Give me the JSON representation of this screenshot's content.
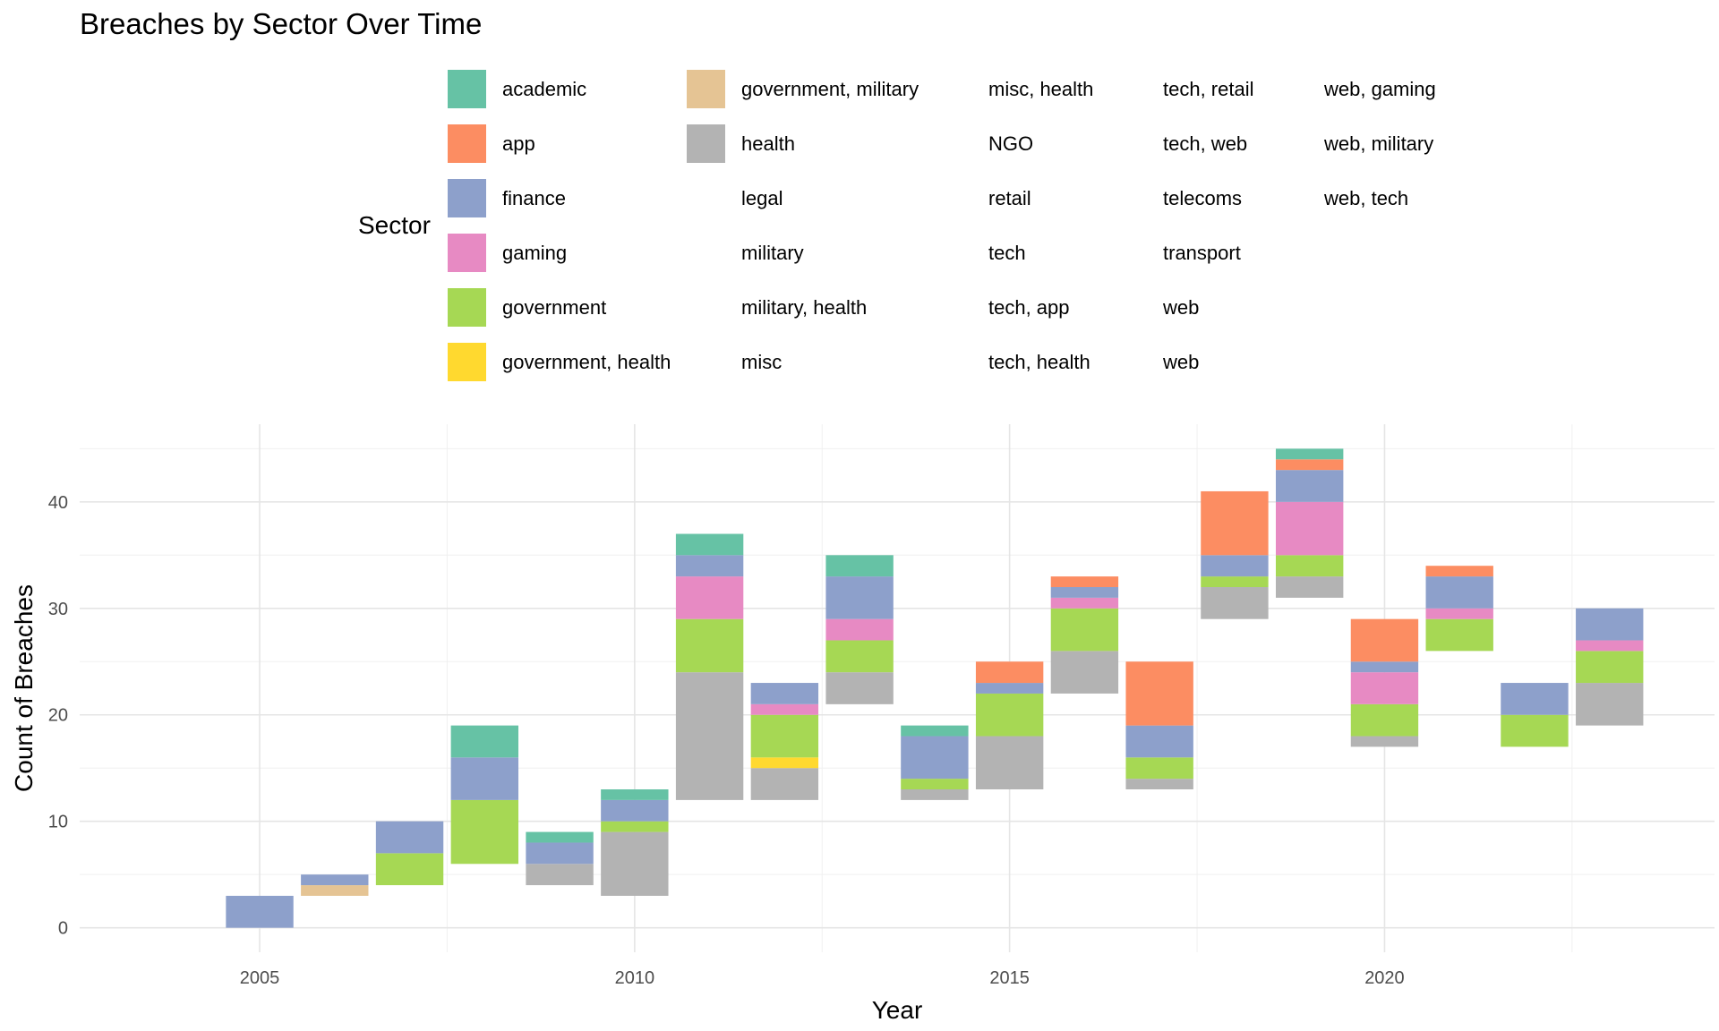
{
  "chart_data": {
    "type": "bar",
    "title": "Breaches by Sector Over Time",
    "xlabel": "Year",
    "ylabel": "Count of Breaches",
    "xlim": [
      2002.6,
      2024.4
    ],
    "ylim": [
      -2.3,
      47.3
    ],
    "x_ticks": [
      2005,
      2010,
      2015,
      2020
    ],
    "y_ticks": [
      0,
      10,
      20,
      30,
      40
    ],
    "grid": true,
    "bar_width": 0.9,
    "legend": {
      "title": "Sector",
      "placement": "top",
      "columns": [
        [
          "academic",
          "app",
          "finance",
          "gaming",
          "government",
          "government, health"
        ],
        [
          "government, military",
          "health",
          "legal",
          "military",
          "military, health",
          "misc"
        ],
        [
          "misc, health",
          "NGO",
          "retail",
          "tech",
          "tech, app",
          "tech, health"
        ],
        [
          "tech, retail",
          "tech, web",
          "telecoms",
          "transport",
          "web",
          "web"
        ],
        [
          "web, gaming",
          "web, military",
          "web, tech"
        ]
      ]
    },
    "colors": {
      "academic": "#66C2A5",
      "app": "#FC8D62",
      "finance": "#8DA0CB",
      "gaming": "#E78AC3",
      "government": "#A6D854",
      "government, health": "#FFD92F",
      "government, military": "#E5C494",
      "health": "#B3B3B3"
    },
    "stacks": [
      {
        "year": 2005,
        "base": 0,
        "segments": [
          {
            "sector": "finance",
            "value": 3
          }
        ]
      },
      {
        "year": 2006,
        "base": 3,
        "segments": [
          {
            "sector": "government, military",
            "value": 1
          },
          {
            "sector": "finance",
            "value": 1
          }
        ]
      },
      {
        "year": 2007,
        "base": 4,
        "segments": [
          {
            "sector": "government",
            "value": 3
          },
          {
            "sector": "finance",
            "value": 3
          }
        ]
      },
      {
        "year": 2008,
        "base": 6,
        "segments": [
          {
            "sector": "government",
            "value": 6
          },
          {
            "sector": "finance",
            "value": 4
          },
          {
            "sector": "academic",
            "value": 3
          }
        ]
      },
      {
        "year": 2009,
        "base": 4,
        "segments": [
          {
            "sector": "health",
            "value": 2
          },
          {
            "sector": "finance",
            "value": 2
          },
          {
            "sector": "academic",
            "value": 1
          }
        ]
      },
      {
        "year": 2010,
        "base": 3,
        "segments": [
          {
            "sector": "health",
            "value": 6
          },
          {
            "sector": "government",
            "value": 1
          },
          {
            "sector": "finance",
            "value": 2
          },
          {
            "sector": "academic",
            "value": 1
          }
        ]
      },
      {
        "year": 2011,
        "base": 12,
        "segments": [
          {
            "sector": "health",
            "value": 12
          },
          {
            "sector": "government",
            "value": 5
          },
          {
            "sector": "gaming",
            "value": 4
          },
          {
            "sector": "finance",
            "value": 2
          },
          {
            "sector": "academic",
            "value": 2
          }
        ]
      },
      {
        "year": 2012,
        "base": 12,
        "segments": [
          {
            "sector": "health",
            "value": 3
          },
          {
            "sector": "government, health",
            "value": 1
          },
          {
            "sector": "government",
            "value": 4
          },
          {
            "sector": "gaming",
            "value": 1
          },
          {
            "sector": "finance",
            "value": 2
          }
        ]
      },
      {
        "year": 2013,
        "base": 21,
        "segments": [
          {
            "sector": "health",
            "value": 3
          },
          {
            "sector": "government",
            "value": 3
          },
          {
            "sector": "gaming",
            "value": 2
          },
          {
            "sector": "finance",
            "value": 4
          },
          {
            "sector": "academic",
            "value": 2
          }
        ]
      },
      {
        "year": 2014,
        "base": 12,
        "segments": [
          {
            "sector": "health",
            "value": 1
          },
          {
            "sector": "government",
            "value": 1
          },
          {
            "sector": "finance",
            "value": 4
          },
          {
            "sector": "academic",
            "value": 1
          }
        ]
      },
      {
        "year": 2015,
        "base": 13,
        "segments": [
          {
            "sector": "health",
            "value": 5
          },
          {
            "sector": "government",
            "value": 4
          },
          {
            "sector": "finance",
            "value": 1
          },
          {
            "sector": "app",
            "value": 2
          }
        ]
      },
      {
        "year": 2016,
        "base": 22,
        "segments": [
          {
            "sector": "health",
            "value": 4
          },
          {
            "sector": "government",
            "value": 4
          },
          {
            "sector": "gaming",
            "value": 1
          },
          {
            "sector": "finance",
            "value": 1
          },
          {
            "sector": "app",
            "value": 1
          }
        ]
      },
      {
        "year": 2017,
        "base": 13,
        "segments": [
          {
            "sector": "health",
            "value": 1
          },
          {
            "sector": "government",
            "value": 2
          },
          {
            "sector": "finance",
            "value": 3
          },
          {
            "sector": "app",
            "value": 6
          }
        ]
      },
      {
        "year": 2018,
        "base": 29,
        "segments": [
          {
            "sector": "health",
            "value": 3
          },
          {
            "sector": "government",
            "value": 1
          },
          {
            "sector": "finance",
            "value": 2
          },
          {
            "sector": "app",
            "value": 6
          }
        ]
      },
      {
        "year": 2019,
        "base": 31,
        "segments": [
          {
            "sector": "health",
            "value": 2
          },
          {
            "sector": "government",
            "value": 2
          },
          {
            "sector": "gaming",
            "value": 5
          },
          {
            "sector": "finance",
            "value": 3
          },
          {
            "sector": "app",
            "value": 1
          },
          {
            "sector": "academic",
            "value": 1
          }
        ]
      },
      {
        "year": 2020,
        "base": 17,
        "segments": [
          {
            "sector": "health",
            "value": 1
          },
          {
            "sector": "government",
            "value": 3
          },
          {
            "sector": "gaming",
            "value": 3
          },
          {
            "sector": "finance",
            "value": 1
          },
          {
            "sector": "app",
            "value": 4
          }
        ]
      },
      {
        "year": 2021,
        "base": 26,
        "segments": [
          {
            "sector": "government",
            "value": 3
          },
          {
            "sector": "gaming",
            "value": 1
          },
          {
            "sector": "finance",
            "value": 3
          },
          {
            "sector": "app",
            "value": 1
          }
        ]
      },
      {
        "year": 2022,
        "base": 17,
        "segments": [
          {
            "sector": "government",
            "value": 3
          },
          {
            "sector": "finance",
            "value": 3
          }
        ]
      },
      {
        "year": 2023,
        "base": 19,
        "segments": [
          {
            "sector": "health",
            "value": 4
          },
          {
            "sector": "government",
            "value": 3
          },
          {
            "sector": "gaming",
            "value": 1
          },
          {
            "sector": "finance",
            "value": 3
          }
        ]
      }
    ]
  }
}
